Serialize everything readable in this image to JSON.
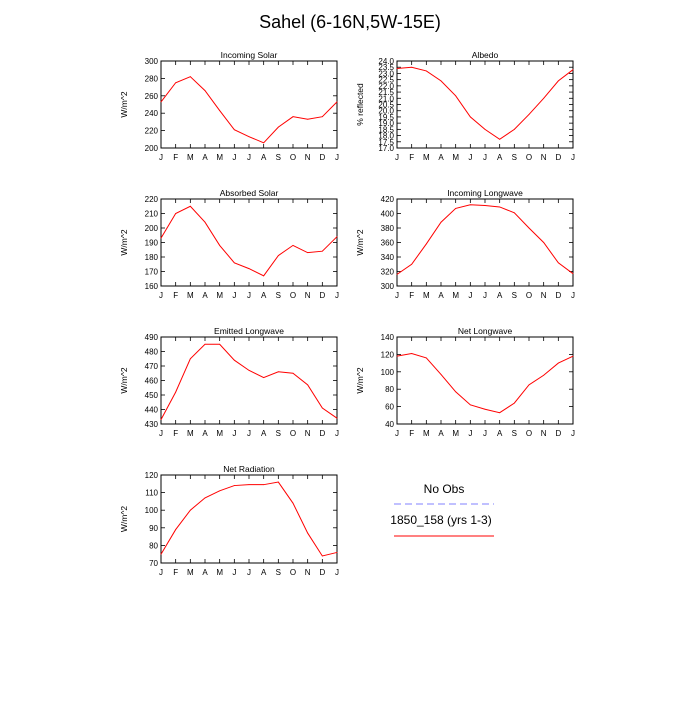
{
  "figure_title": "Sahel (6-16N,5W-15E)",
  "legend": {
    "entries": [
      {
        "label": "No Obs",
        "color": "#8080ff",
        "dash": true
      },
      {
        "label": "1850_158 (yrs 1-3)",
        "color": "#ff0000",
        "dash": false
      }
    ]
  },
  "chart_data": [
    {
      "type": "line",
      "title": "Incoming Solar",
      "ylabel": "W/m^2",
      "x": [
        "J",
        "F",
        "M",
        "A",
        "M",
        "J",
        "J",
        "A",
        "S",
        "O",
        "N",
        "D",
        "J"
      ],
      "ylim": [
        200,
        300
      ],
      "yticks": [
        200,
        220,
        240,
        260,
        280,
        300
      ],
      "ytick_labels": [
        "200",
        "220",
        "240",
        "260",
        "280",
        "300"
      ],
      "series": [
        {
          "name": "1850_158 (yrs 1-3)",
          "color": "#ff0000",
          "values": [
            253,
            275,
            282,
            266,
            243,
            221,
            213,
            206,
            224,
            236,
            233,
            236,
            253
          ]
        }
      ]
    },
    {
      "type": "line",
      "title": "Albedo",
      "ylabel": "% reflected",
      "x": [
        "J",
        "F",
        "M",
        "A",
        "M",
        "J",
        "J",
        "A",
        "S",
        "O",
        "N",
        "D",
        "J"
      ],
      "ylim": [
        17,
        24
      ],
      "yticks": [
        17,
        18,
        19,
        20,
        21,
        22,
        23,
        24
      ],
      "ytick_labels": [
        "17.0",
        "18.0",
        "19.0",
        "20.0",
        "21.0",
        "22.0",
        "23.0",
        "24.0"
      ],
      "ytick_minor": [
        17.5,
        18.5,
        19.5,
        20.5,
        21.5,
        22.5,
        23.5
      ],
      "ytick_minor_labels": [
        "17.5",
        "18.5",
        "19.5",
        "20.5",
        "21.5",
        "22.5",
        "23.5"
      ],
      "series": [
        {
          "name": "1850_158 (yrs 1-3)",
          "color": "#ff0000",
          "values": [
            23.4,
            23.5,
            23.2,
            22.4,
            21.2,
            19.5,
            18.5,
            17.7,
            18.5,
            19.7,
            21.0,
            22.4,
            23.3
          ]
        }
      ]
    },
    {
      "type": "line",
      "title": "Absorbed Solar",
      "ylabel": "W/m^2",
      "x": [
        "J",
        "F",
        "M",
        "A",
        "M",
        "J",
        "J",
        "A",
        "S",
        "O",
        "N",
        "D",
        "J"
      ],
      "ylim": [
        160,
        220
      ],
      "yticks": [
        160,
        170,
        180,
        190,
        200,
        210,
        220
      ],
      "ytick_labels": [
        "160",
        "170",
        "180",
        "190",
        "200",
        "210",
        "220"
      ],
      "series": [
        {
          "name": "1850_158 (yrs 1-3)",
          "color": "#ff0000",
          "values": [
            193,
            210,
            215,
            204,
            188,
            176,
            172,
            167,
            181,
            188,
            183,
            184,
            194
          ]
        }
      ]
    },
    {
      "type": "line",
      "title": "Incoming Longwave",
      "ylabel": "W/m^2",
      "x": [
        "J",
        "F",
        "M",
        "A",
        "M",
        "J",
        "J",
        "A",
        "S",
        "O",
        "N",
        "D",
        "J"
      ],
      "ylim": [
        300,
        420
      ],
      "yticks": [
        300,
        320,
        340,
        360,
        380,
        400,
        420
      ],
      "ytick_labels": [
        "300",
        "320",
        "340",
        "360",
        "380",
        "400",
        "420"
      ],
      "series": [
        {
          "name": "1850_158 (yrs 1-3)",
          "color": "#ff0000",
          "values": [
            316,
            330,
            358,
            388,
            407,
            412,
            411,
            409,
            401,
            380,
            360,
            332,
            317
          ]
        }
      ]
    },
    {
      "type": "line",
      "title": "Emitted Longwave",
      "ylabel": "W/m^2",
      "x": [
        "J",
        "F",
        "M",
        "A",
        "M",
        "J",
        "J",
        "A",
        "S",
        "O",
        "N",
        "D",
        "J"
      ],
      "ylim": [
        430,
        490
      ],
      "yticks": [
        430,
        440,
        450,
        460,
        470,
        480,
        490
      ],
      "ytick_labels": [
        "430",
        "440",
        "450",
        "460",
        "470",
        "480",
        "490"
      ],
      "series": [
        {
          "name": "1850_158 (yrs 1-3)",
          "color": "#ff0000",
          "values": [
            433,
            452,
            475,
            485,
            485,
            474,
            467,
            462,
            466,
            465,
            457,
            441,
            434
          ]
        }
      ]
    },
    {
      "type": "line",
      "title": "Net Longwave",
      "ylabel": "W/m^2",
      "x": [
        "J",
        "F",
        "M",
        "A",
        "M",
        "J",
        "J",
        "A",
        "S",
        "O",
        "N",
        "D",
        "J"
      ],
      "ylim": [
        40,
        140
      ],
      "yticks": [
        40,
        60,
        80,
        100,
        120,
        140
      ],
      "ytick_labels": [
        "40",
        "60",
        "80",
        "100",
        "120",
        "140"
      ],
      "series": [
        {
          "name": "1850_158 (yrs 1-3)",
          "color": "#ff0000",
          "values": [
            118,
            121,
            116,
            97,
            77,
            62,
            57,
            53,
            64,
            85,
            96,
            110,
            118
          ]
        }
      ]
    },
    {
      "type": "line",
      "title": "Net Radiation",
      "ylabel": "W/m^2",
      "x": [
        "J",
        "F",
        "M",
        "A",
        "M",
        "J",
        "J",
        "A",
        "S",
        "O",
        "N",
        "D",
        "J"
      ],
      "ylim": [
        70,
        120
      ],
      "yticks": [
        70,
        80,
        90,
        100,
        110,
        120
      ],
      "ytick_labels": [
        "70",
        "80",
        "90",
        "100",
        "110",
        "120"
      ],
      "series": [
        {
          "name": "1850_158 (yrs 1-3)",
          "color": "#ff0000",
          "values": [
            75,
            89,
            100,
            107,
            111,
            114,
            114.5,
            114.5,
            116,
            104,
            87,
            74,
            76
          ]
        }
      ]
    }
  ]
}
